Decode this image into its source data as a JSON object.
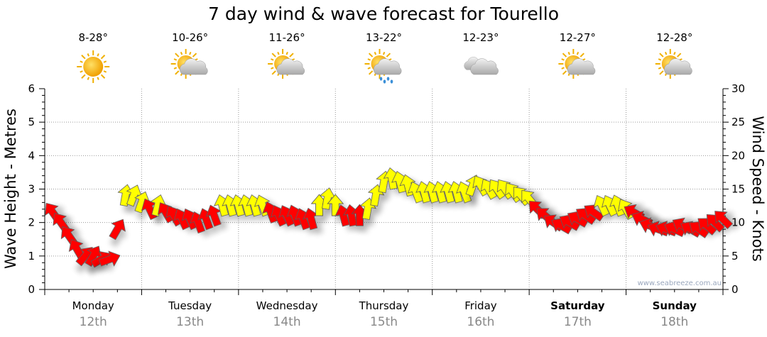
{
  "chart_data": {
    "type": "scatter",
    "title": "7 day wind & wave forecast for Tourello",
    "ylabel_left": "Wave Height - Metres",
    "ylabel_right": "Wind Speed - Knots",
    "ylim_left": [
      0,
      6
    ],
    "ylim_right": [
      0,
      30
    ],
    "yticks_left": [
      "0",
      "1",
      "2",
      "3",
      "4",
      "5",
      "6"
    ],
    "yticks_right": [
      "0",
      "5",
      "10",
      "15",
      "20",
      "25",
      "30"
    ],
    "grid": true,
    "watermark": "www.seabreeze.com.au",
    "days": [
      {
        "name": "Monday",
        "date": "12th",
        "temps": "8-28°",
        "icon": "sunny-icon",
        "bold": false
      },
      {
        "name": "Tuesday",
        "date": "13th",
        "temps": "10-26°",
        "icon": "partly-cloudy-icon",
        "bold": false
      },
      {
        "name": "Wednesday",
        "date": "14th",
        "temps": "11-26°",
        "icon": "partly-cloudy-icon",
        "bold": false
      },
      {
        "name": "Thursday",
        "date": "15th",
        "temps": "13-22°",
        "icon": "showers-icon",
        "bold": false
      },
      {
        "name": "Friday",
        "date": "16th",
        "temps": "12-23°",
        "icon": "cloudy-icon",
        "bold": false
      },
      {
        "name": "Saturday",
        "date": "17th",
        "temps": "12-27°",
        "icon": "partly-cloudy-icon",
        "bold": true
      },
      {
        "name": "Sunday",
        "date": "18th",
        "temps": "12-28°",
        "icon": "partly-cloudy-icon",
        "bold": true
      }
    ],
    "colors": {
      "r": "#ff0000",
      "y": "#ffff00"
    },
    "wind_series_fields": [
      "hour_from_monday",
      "knots",
      "arrow_bearing_deg",
      "color"
    ],
    "wind": [
      [
        2,
        11.5,
        -35,
        "r"
      ],
      [
        4,
        10,
        -35,
        "r"
      ],
      [
        6,
        8,
        -35,
        "r"
      ],
      [
        8,
        6,
        -30,
        "r"
      ],
      [
        10,
        5,
        40,
        "r"
      ],
      [
        12,
        5,
        30,
        "r"
      ],
      [
        14,
        4.5,
        60,
        "r"
      ],
      [
        16,
        4.5,
        70,
        "r"
      ],
      [
        18,
        9,
        30,
        "r"
      ],
      [
        20,
        14,
        10,
        "y"
      ],
      [
        22,
        14,
        20,
        "y"
      ],
      [
        24,
        13,
        20,
        "y"
      ],
      [
        26,
        12,
        -25,
        "r"
      ],
      [
        28,
        12.5,
        15,
        "y"
      ],
      [
        30,
        11.5,
        -30,
        "r"
      ],
      [
        32,
        11,
        -30,
        "r"
      ],
      [
        34,
        10.5,
        -25,
        "r"
      ],
      [
        36,
        10.5,
        -25,
        "r"
      ],
      [
        38,
        10,
        -20,
        "r"
      ],
      [
        40,
        10.5,
        -20,
        "r"
      ],
      [
        42,
        11,
        -20,
        "r"
      ],
      [
        44,
        12.5,
        -15,
        "y"
      ],
      [
        46,
        12.5,
        -15,
        "y"
      ],
      [
        48,
        12.5,
        -15,
        "y"
      ],
      [
        50,
        12.5,
        -15,
        "y"
      ],
      [
        52,
        12.5,
        -15,
        "y"
      ],
      [
        54,
        12.5,
        -20,
        "y"
      ],
      [
        56,
        11.5,
        -20,
        "r"
      ],
      [
        58,
        11,
        -25,
        "r"
      ],
      [
        60,
        11,
        -25,
        "r"
      ],
      [
        62,
        11,
        -20,
        "r"
      ],
      [
        64,
        10.5,
        -20,
        "r"
      ],
      [
        66,
        10.5,
        -15,
        "r"
      ],
      [
        68,
        12.5,
        0,
        "y"
      ],
      [
        70,
        13.5,
        10,
        "y"
      ],
      [
        72,
        12.5,
        0,
        "y"
      ],
      [
        74,
        11,
        -15,
        "r"
      ],
      [
        76,
        11,
        -10,
        "r"
      ],
      [
        78,
        11,
        0,
        "r"
      ],
      [
        80,
        12,
        10,
        "y"
      ],
      [
        82,
        14,
        10,
        "y"
      ],
      [
        84,
        16,
        10,
        "y"
      ],
      [
        86,
        16.5,
        -10,
        "y"
      ],
      [
        88,
        16,
        -15,
        "y"
      ],
      [
        90,
        15.5,
        -15,
        "y"
      ],
      [
        92,
        14.5,
        -20,
        "y"
      ],
      [
        94,
        14.5,
        -15,
        "y"
      ],
      [
        96,
        14.5,
        -15,
        "y"
      ],
      [
        98,
        14.5,
        -15,
        "y"
      ],
      [
        100,
        14.5,
        -15,
        "y"
      ],
      [
        102,
        14.5,
        -15,
        "y"
      ],
      [
        104,
        14.5,
        -20,
        "y"
      ],
      [
        106,
        15.5,
        20,
        "y"
      ],
      [
        108,
        15.5,
        -30,
        "y"
      ],
      [
        110,
        15,
        -30,
        "y"
      ],
      [
        112,
        15,
        -35,
        "y"
      ],
      [
        114,
        15,
        -35,
        "y"
      ],
      [
        116,
        14.5,
        -35,
        "y"
      ],
      [
        118,
        14,
        -40,
        "y"
      ],
      [
        120,
        13.5,
        -40,
        "y"
      ],
      [
        122,
        12,
        -45,
        "r"
      ],
      [
        124,
        11,
        -50,
        "r"
      ],
      [
        126,
        10,
        -55,
        "r"
      ],
      [
        128,
        9.5,
        -60,
        "r"
      ],
      [
        130,
        10,
        -60,
        "r"
      ],
      [
        132,
        10.5,
        -60,
        "r"
      ],
      [
        134,
        11,
        -55,
        "r"
      ],
      [
        136,
        11.5,
        -55,
        "r"
      ],
      [
        138,
        12.5,
        -25,
        "y"
      ],
      [
        140,
        12.5,
        -25,
        "y"
      ],
      [
        142,
        12.5,
        -20,
        "y"
      ],
      [
        144,
        12,
        -30,
        "y"
      ],
      [
        146,
        11.5,
        -60,
        "r"
      ],
      [
        148,
        10.5,
        -65,
        "r"
      ],
      [
        150,
        9.5,
        -70,
        "r"
      ],
      [
        152,
        9,
        -70,
        "r"
      ],
      [
        154,
        9,
        -70,
        "r"
      ],
      [
        156,
        9,
        -65,
        "r"
      ],
      [
        158,
        9.5,
        -60,
        "r"
      ],
      [
        160,
        9,
        -60,
        "r"
      ],
      [
        162,
        9,
        -55,
        "r"
      ],
      [
        164,
        9.5,
        -50,
        "r"
      ],
      [
        166,
        10,
        -45,
        "r"
      ],
      [
        168,
        10.5,
        -45,
        "r"
      ]
    ]
  }
}
